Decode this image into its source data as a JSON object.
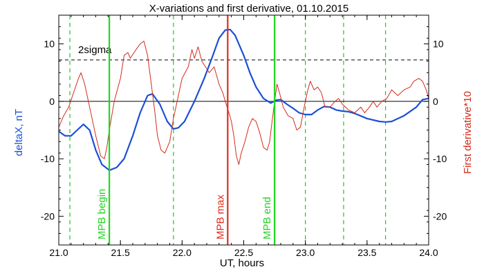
{
  "chart_data": {
    "type": "line",
    "title": "X-variations and first derivative, 01.10.2015",
    "xlabel": "UT, hours",
    "ylabel_left": "deltaX, nT",
    "ylabel_right": "First derivative*10",
    "xlim": [
      21.0,
      24.0
    ],
    "ylim": [
      -25,
      15
    ],
    "x_ticks": [
      21.0,
      21.5,
      22.0,
      22.5,
      23.0,
      23.5,
      24.0
    ],
    "x_tick_labels": [
      "21.0",
      "21.5",
      "22.0",
      "22.5",
      "23.0",
      "23.5",
      "24.0"
    ],
    "y_ticks": [
      -20,
      -10,
      0,
      10
    ],
    "y_tick_labels_left": [
      "-20",
      "-10",
      "0",
      "10"
    ],
    "y_tick_labels_right": [
      "-20",
      "-10",
      "0",
      "10"
    ],
    "colors": {
      "deltax": "#1a4fd6",
      "derivative": "#d42a1a",
      "mpb_bound": "#22d622",
      "mpb_max": "#e22a1a",
      "dashed_green": "#22c422",
      "axes": "#000000"
    },
    "zero_line": 0,
    "sigma_line": {
      "value": 7.2,
      "label": "2sigma"
    },
    "series": [
      {
        "name": "deltaX, nT",
        "points": [
          [
            21.0,
            -5.2
          ],
          [
            21.05,
            -6.0
          ],
          [
            21.1,
            -6.0
          ],
          [
            21.15,
            -5.0
          ],
          [
            21.2,
            -4.0
          ],
          [
            21.25,
            -5.0
          ],
          [
            21.3,
            -8.5
          ],
          [
            21.35,
            -11.0
          ],
          [
            21.41,
            -12.0
          ],
          [
            21.47,
            -11.5
          ],
          [
            21.53,
            -10.0
          ],
          [
            21.6,
            -6.0
          ],
          [
            21.66,
            -2.0
          ],
          [
            21.72,
            1.0
          ],
          [
            21.76,
            1.3
          ],
          [
            21.82,
            -0.5
          ],
          [
            21.88,
            -3.5
          ],
          [
            21.93,
            -4.8
          ],
          [
            21.97,
            -4.6
          ],
          [
            22.02,
            -3.5
          ],
          [
            22.1,
            0.0
          ],
          [
            22.18,
            4.0
          ],
          [
            22.25,
            8.0
          ],
          [
            22.3,
            11.0
          ],
          [
            22.35,
            12.4
          ],
          [
            22.39,
            12.5
          ],
          [
            22.43,
            11.5
          ],
          [
            22.5,
            8.0
          ],
          [
            22.55,
            5.0
          ],
          [
            22.6,
            2.5
          ],
          [
            22.66,
            0.5
          ],
          [
            22.72,
            -0.3
          ],
          [
            22.76,
            0.2
          ],
          [
            22.8,
            0.3
          ],
          [
            22.85,
            -0.5
          ],
          [
            22.9,
            -1.2
          ],
          [
            22.95,
            -2.0
          ],
          [
            23.0,
            -2.3
          ],
          [
            23.05,
            -2.3
          ],
          [
            23.1,
            -1.5
          ],
          [
            23.15,
            -0.9
          ],
          [
            23.2,
            -1.0
          ],
          [
            23.25,
            -1.5
          ],
          [
            23.3,
            -1.7
          ],
          [
            23.35,
            -1.8
          ],
          [
            23.4,
            -2.1
          ],
          [
            23.5,
            -3.0
          ],
          [
            23.6,
            -3.5
          ],
          [
            23.65,
            -3.6
          ],
          [
            23.7,
            -3.5
          ],
          [
            23.8,
            -2.5
          ],
          [
            23.9,
            -1.0
          ],
          [
            23.95,
            0.3
          ],
          [
            24.0,
            0.5
          ]
        ]
      },
      {
        "name": "First derivative*10",
        "points": [
          [
            21.0,
            -4.5
          ],
          [
            21.04,
            -2.5
          ],
          [
            21.08,
            -1.0
          ],
          [
            21.12,
            1.5
          ],
          [
            21.16,
            4.0
          ],
          [
            21.18,
            5.0
          ],
          [
            21.21,
            3.0
          ],
          [
            21.25,
            -1.0
          ],
          [
            21.3,
            -6.0
          ],
          [
            21.34,
            -9.5
          ],
          [
            21.37,
            -10.0
          ],
          [
            21.39,
            -8.0
          ],
          [
            21.41,
            -5.0
          ],
          [
            21.45,
            0.0
          ],
          [
            21.5,
            4.0
          ],
          [
            21.53,
            8.0
          ],
          [
            21.56,
            8.5
          ],
          [
            21.58,
            7.5
          ],
          [
            21.62,
            8.8
          ],
          [
            21.66,
            10.0
          ],
          [
            21.69,
            10.5
          ],
          [
            21.72,
            8.0
          ],
          [
            21.75,
            3.0
          ],
          [
            21.78,
            -2.0
          ],
          [
            21.8,
            -6.0
          ],
          [
            21.83,
            -8.5
          ],
          [
            21.86,
            -9.0
          ],
          [
            21.9,
            -7.0
          ],
          [
            21.93,
            -3.0
          ],
          [
            21.96,
            0.0
          ],
          [
            22.0,
            4.0
          ],
          [
            22.05,
            6.0
          ],
          [
            22.08,
            9.0
          ],
          [
            22.1,
            7.5
          ],
          [
            22.13,
            9.5
          ],
          [
            22.16,
            7.0
          ],
          [
            22.19,
            6.0
          ],
          [
            22.22,
            5.0
          ],
          [
            22.26,
            6.0
          ],
          [
            22.3,
            3.0
          ],
          [
            22.33,
            1.5
          ],
          [
            22.35,
            0.0
          ],
          [
            22.38,
            -2.0
          ],
          [
            22.4,
            -3.5
          ],
          [
            22.42,
            -6.0
          ],
          [
            22.44,
            -9.5
          ],
          [
            22.46,
            -11.0
          ],
          [
            22.48,
            -9.0
          ],
          [
            22.51,
            -7.0
          ],
          [
            22.54,
            -4.5
          ],
          [
            22.57,
            -3.0
          ],
          [
            22.6,
            -3.5
          ],
          [
            22.63,
            -5.5
          ],
          [
            22.66,
            -8.0
          ],
          [
            22.69,
            -8.5
          ],
          [
            22.71,
            -7.0
          ],
          [
            22.73,
            -3.5
          ],
          [
            22.75,
            0.0
          ],
          [
            22.77,
            3.0
          ],
          [
            22.79,
            1.5
          ],
          [
            22.82,
            -1.0
          ],
          [
            22.86,
            -2.5
          ],
          [
            22.9,
            -3.0
          ],
          [
            22.93,
            -5.0
          ],
          [
            22.96,
            -4.5
          ],
          [
            22.99,
            -1.0
          ],
          [
            23.02,
            2.0
          ],
          [
            23.04,
            3.5
          ],
          [
            23.07,
            2.0
          ],
          [
            23.1,
            2.5
          ],
          [
            23.13,
            1.5
          ],
          [
            23.16,
            -1.0
          ],
          [
            23.2,
            -1.0
          ],
          [
            23.24,
            0.0
          ],
          [
            23.27,
            0.5
          ],
          [
            23.3,
            -0.5
          ],
          [
            23.35,
            -1.5
          ],
          [
            23.4,
            -2.0
          ],
          [
            23.45,
            -1.0
          ],
          [
            23.48,
            -2.0
          ],
          [
            23.52,
            -1.0
          ],
          [
            23.55,
            0.0
          ],
          [
            23.58,
            -1.0
          ],
          [
            23.62,
            0.0
          ],
          [
            23.66,
            0.5
          ],
          [
            23.7,
            2.0
          ],
          [
            23.75,
            1.0
          ],
          [
            23.8,
            2.0
          ],
          [
            23.85,
            2.5
          ],
          [
            23.88,
            3.5
          ],
          [
            23.92,
            4.0
          ],
          [
            23.95,
            3.5
          ],
          [
            23.98,
            2.0
          ],
          [
            24.0,
            0.5
          ]
        ]
      }
    ],
    "vertical_markers": [
      {
        "x": 21.41,
        "label": "MPB begin",
        "style": "solid",
        "color": "#22d622"
      },
      {
        "x": 22.37,
        "label": "MPB max",
        "style": "solid",
        "color": "#e22a1a"
      },
      {
        "x": 22.75,
        "label": "MPB end",
        "style": "solid",
        "color": "#22d622"
      }
    ],
    "dashed_markers": [
      21.09,
      21.93,
      23.0,
      23.31,
      23.65
    ],
    "grid": false
  }
}
